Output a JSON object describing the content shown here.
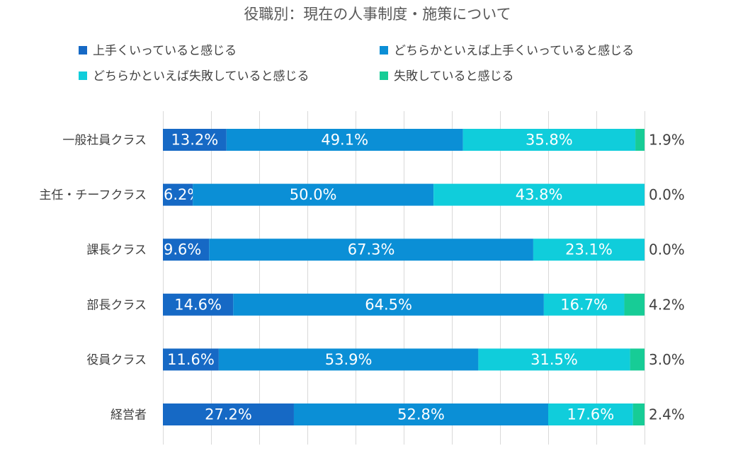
{
  "chart_data": {
    "type": "bar",
    "orientation": "horizontal",
    "stacked": "percent",
    "title": "役職別：現在の人事制度・施策について",
    "categories": [
      "一般社員クラス",
      "主任・チーフクラス",
      "課長クラス",
      "部長クラス",
      "役員クラス",
      "経営者"
    ],
    "series": [
      {
        "name": "上手くいっていると感じる",
        "color": "#1669c5",
        "values": [
          13.2,
          6.2,
          9.6,
          14.6,
          11.6,
          27.2
        ],
        "labels": [
          "13.2%",
          "6.2%",
          "9.6%",
          "14.6%",
          "11.6%",
          "27.2%"
        ]
      },
      {
        "name": "どちらかといえば上手くいっていると感じる",
        "color": "#0b8fd6",
        "values": [
          49.1,
          50.0,
          67.3,
          64.5,
          53.9,
          52.8
        ],
        "labels": [
          "49.1%",
          "50.0%",
          "67.3%",
          "64.5%",
          "53.9%",
          "52.8%"
        ]
      },
      {
        "name": "どちらかといえば失敗していると感じる",
        "color": "#10cddb",
        "values": [
          35.8,
          43.8,
          23.1,
          16.7,
          31.5,
          17.6
        ],
        "labels": [
          "35.8%",
          "43.8%",
          "23.1%",
          "16.7%",
          "31.5%",
          "17.6%"
        ]
      },
      {
        "name": "失敗していると感じる",
        "color": "#17cc96",
        "values": [
          1.9,
          0.0,
          0.0,
          4.2,
          3.0,
          2.4
        ],
        "labels": [
          "1.9%",
          "0.0%",
          "0.0%",
          "4.2%",
          "3.0%",
          "2.4%"
        ]
      }
    ],
    "xlim": [
      0,
      100
    ],
    "gridlines": true,
    "legend_position": "top",
    "last_series_label_placement": "outside-right"
  }
}
